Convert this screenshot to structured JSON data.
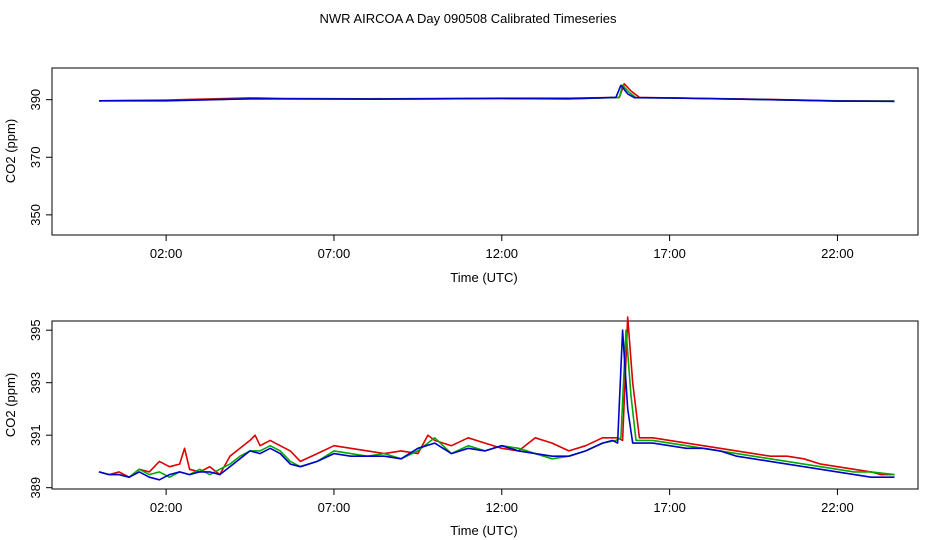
{
  "page": {
    "title": "NWR AIRCOA A  Day 090508  Calibrated Timeseries"
  },
  "chart_data": [
    {
      "type": "line",
      "xlabel": "Time (UTC)",
      "ylabel": "CO2 (ppm)",
      "xlim": [
        -1.4,
        24.4
      ],
      "ylim": [
        343,
        401
      ],
      "x_ticks": [
        2,
        7,
        12,
        17,
        22
      ],
      "x_tick_labels": [
        "02:00",
        "07:00",
        "12:00",
        "17:00",
        "22:00"
      ],
      "y_ticks": [
        350,
        370,
        390
      ],
      "y_tick_labels": [
        "350",
        "370",
        "390"
      ],
      "grid": false,
      "series": [
        {
          "color": "#dd0000",
          "x": [
            0,
            2,
            4.5,
            5.5,
            8,
            10,
            12,
            14,
            15.5,
            15.65,
            15.85,
            16.1,
            17,
            20,
            22,
            23.7
          ],
          "values": [
            389.6,
            389.9,
            390.6,
            390.4,
            390.3,
            390.4,
            390.5,
            390.5,
            390.8,
            395.5,
            393,
            390.8,
            390.6,
            390.1,
            389.6,
            389.5
          ]
        },
        {
          "color": "#00aa00",
          "x": [
            0,
            2,
            4.5,
            5.5,
            8,
            10,
            12,
            14,
            15.5,
            15.6,
            15.8,
            16.0,
            17,
            20,
            22,
            23.7
          ],
          "values": [
            389.6,
            389.7,
            390.3,
            390.3,
            390.2,
            390.3,
            390.4,
            390.3,
            390.8,
            395.0,
            392.5,
            390.7,
            390.6,
            390.0,
            389.5,
            389.5
          ]
        },
        {
          "color": "#0000cc",
          "x": [
            0,
            2,
            4.5,
            5.5,
            8,
            10,
            12,
            14,
            15.4,
            15.55,
            15.75,
            15.95,
            17,
            20,
            22,
            23.7
          ],
          "values": [
            389.6,
            389.6,
            390.3,
            390.3,
            390.2,
            390.3,
            390.4,
            390.3,
            390.8,
            395.0,
            392,
            390.7,
            390.6,
            390.0,
            389.5,
            389.4
          ]
        }
      ]
    },
    {
      "type": "line",
      "xlabel": "Time (UTC)",
      "ylabel": "CO2 (ppm)",
      "xlim": [
        -1.4,
        24.4
      ],
      "ylim": [
        388.95,
        395.35
      ],
      "x_ticks": [
        2,
        7,
        12,
        17,
        22
      ],
      "x_tick_labels": [
        "02:00",
        "07:00",
        "12:00",
        "17:00",
        "22:00"
      ],
      "y_ticks": [
        389,
        391,
        393,
        395
      ],
      "y_tick_labels": [
        "389",
        "391",
        "393",
        "395"
      ],
      "grid": false,
      "series": [
        {
          "color": "#dd0000",
          "x": [
            0,
            0.3,
            0.6,
            0.9,
            1.2,
            1.5,
            1.8,
            2.1,
            2.4,
            2.55,
            2.7,
            3.0,
            3.3,
            3.6,
            3.9,
            4.2,
            4.5,
            4.65,
            4.8,
            5.1,
            5.4,
            5.7,
            6.0,
            6.5,
            7.0,
            7.5,
            8.0,
            8.5,
            9.0,
            9.5,
            9.8,
            10.0,
            10.5,
            11.0,
            11.5,
            12.0,
            12.5,
            13.0,
            13.5,
            14.0,
            14.5,
            15.0,
            15.45,
            15.6,
            15.75,
            15.9,
            16.1,
            16.5,
            17.0,
            17.5,
            18.0,
            18.5,
            19.0,
            19.5,
            20.0,
            20.5,
            21.0,
            21.5,
            22.0,
            22.5,
            23.0,
            23.3,
            23.7
          ],
          "values": [
            389.6,
            389.5,
            389.6,
            389.4,
            389.7,
            389.6,
            390.0,
            389.8,
            389.9,
            390.5,
            389.7,
            389.6,
            389.8,
            389.5,
            390.2,
            390.5,
            390.8,
            391.0,
            390.6,
            390.8,
            390.6,
            390.4,
            390.0,
            390.3,
            390.6,
            390.5,
            390.4,
            390.3,
            390.4,
            390.3,
            391.0,
            390.8,
            390.6,
            390.9,
            390.7,
            390.5,
            390.4,
            390.9,
            390.7,
            390.4,
            390.6,
            390.9,
            390.9,
            390.8,
            395.5,
            393.0,
            390.9,
            390.9,
            390.8,
            390.7,
            390.6,
            390.5,
            390.4,
            390.3,
            390.2,
            390.2,
            390.1,
            389.9,
            389.8,
            389.7,
            389.6,
            389.5,
            389.5
          ]
        },
        {
          "color": "#00aa00",
          "x": [
            0,
            0.3,
            0.6,
            0.9,
            1.2,
            1.5,
            1.8,
            2.1,
            2.4,
            2.7,
            3.0,
            3.3,
            3.6,
            3.9,
            4.2,
            4.5,
            4.8,
            5.1,
            5.4,
            5.7,
            6.0,
            6.5,
            7.0,
            7.5,
            8.0,
            8.5,
            9.0,
            9.5,
            10.0,
            10.5,
            11.0,
            11.5,
            12.0,
            12.5,
            13.0,
            13.5,
            14.0,
            14.5,
            15.0,
            15.4,
            15.55,
            15.7,
            15.85,
            16.0,
            16.5,
            17.0,
            17.5,
            18.0,
            18.5,
            19.0,
            19.5,
            20.0,
            20.5,
            21.0,
            21.5,
            22.0,
            22.5,
            23.0,
            23.7
          ],
          "values": [
            389.6,
            389.5,
            389.5,
            389.4,
            389.7,
            389.5,
            389.6,
            389.4,
            389.6,
            389.5,
            389.7,
            389.5,
            389.7,
            389.9,
            390.2,
            390.4,
            390.4,
            390.6,
            390.4,
            390.0,
            389.8,
            390.0,
            390.4,
            390.3,
            390.2,
            390.3,
            390.1,
            390.4,
            390.9,
            390.3,
            390.6,
            390.4,
            390.6,
            390.5,
            390.3,
            390.1,
            390.2,
            390.4,
            390.7,
            390.8,
            390.9,
            395.0,
            392.5,
            390.8,
            390.8,
            390.7,
            390.6,
            390.5,
            390.4,
            390.3,
            390.2,
            390.1,
            390.0,
            389.9,
            389.8,
            389.7,
            389.6,
            389.6,
            389.5
          ]
        },
        {
          "color": "#0000cc",
          "x": [
            0,
            0.3,
            0.6,
            0.9,
            1.2,
            1.5,
            1.8,
            2.1,
            2.4,
            2.7,
            3.0,
            3.3,
            3.6,
            3.9,
            4.2,
            4.5,
            4.8,
            5.1,
            5.4,
            5.7,
            6.0,
            6.5,
            7.0,
            7.5,
            8.0,
            8.5,
            9.0,
            9.5,
            10.0,
            10.5,
            11.0,
            11.5,
            12.0,
            12.5,
            13.0,
            13.5,
            14.0,
            14.5,
            15.0,
            15.3,
            15.45,
            15.6,
            15.75,
            15.9,
            16.5,
            17.0,
            17.5,
            18.0,
            18.5,
            19.0,
            19.5,
            20.0,
            20.5,
            21.0,
            21.5,
            22.0,
            22.5,
            23.0,
            23.7
          ],
          "values": [
            389.6,
            389.5,
            389.5,
            389.4,
            389.6,
            389.4,
            389.3,
            389.5,
            389.6,
            389.5,
            389.6,
            389.6,
            389.5,
            389.8,
            390.1,
            390.4,
            390.3,
            390.5,
            390.3,
            389.9,
            389.8,
            390.0,
            390.3,
            390.2,
            390.2,
            390.2,
            390.1,
            390.5,
            390.7,
            390.3,
            390.5,
            390.4,
            390.6,
            390.4,
            390.3,
            390.2,
            390.2,
            390.4,
            390.7,
            390.8,
            390.7,
            395.0,
            392.0,
            390.7,
            390.7,
            390.6,
            390.5,
            390.5,
            390.4,
            390.2,
            390.1,
            390.0,
            389.9,
            389.8,
            389.7,
            389.6,
            389.5,
            389.4,
            389.4
          ]
        }
      ]
    }
  ]
}
